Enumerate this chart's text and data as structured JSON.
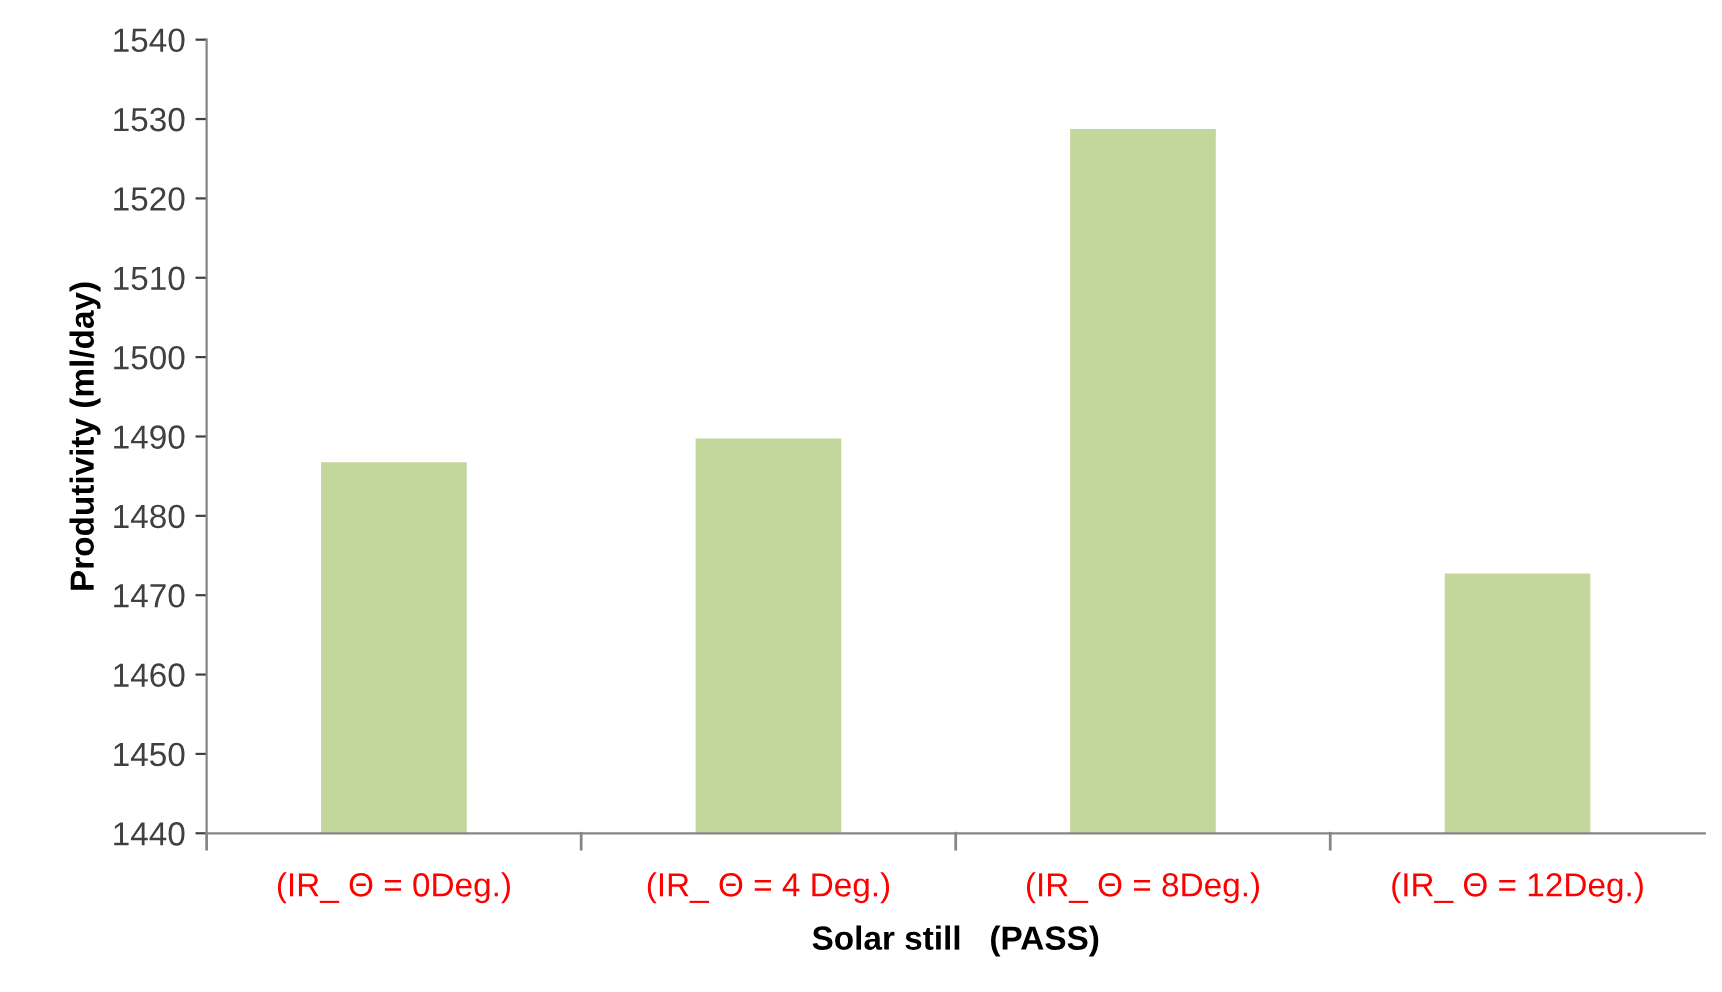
{
  "chart_data": {
    "type": "bar",
    "xlabel": "Solar still   (PASS)",
    "ylabel": "Produtivity (ml/day)",
    "categories": [
      "(IR_ Θ = 0Deg.)",
      "(IR_ Θ = 4 Deg.)",
      "(IR_ Θ = 8Deg.)",
      "(IR_ Θ = 12Deg.)"
    ],
    "values": [
      1487,
      1490,
      1529,
      1473
    ],
    "color": "#c3d69b",
    "ylim": [
      1440,
      1540
    ],
    "yticks": [
      1440,
      1450,
      1460,
      1470,
      1480,
      1490,
      1500,
      1510,
      1520,
      1530,
      1540
    ],
    "grid": false
  }
}
